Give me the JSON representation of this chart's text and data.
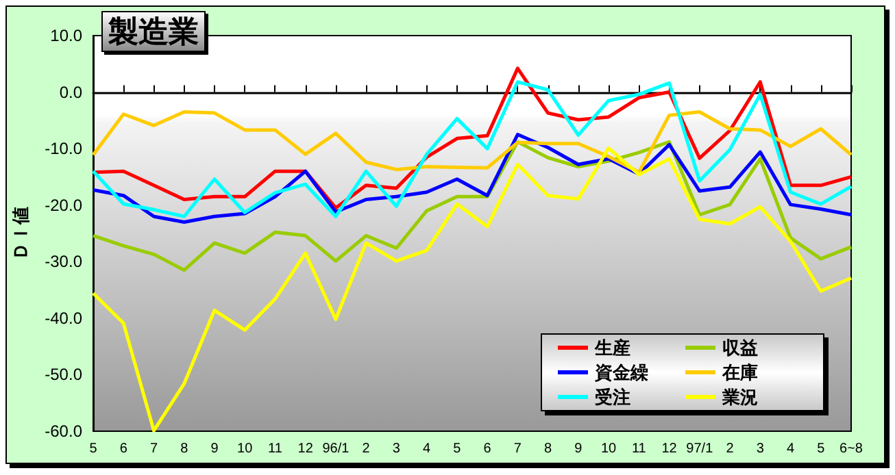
{
  "chart_data": {
    "type": "line",
    "title": "製造業",
    "ylabel": "ＤＩ値",
    "categories": [
      "5",
      "6",
      "7",
      "8",
      "9",
      "10",
      "11",
      "12",
      "96/1",
      "2",
      "3",
      "4",
      "5",
      "6",
      "7",
      "8",
      "9",
      "10",
      "11",
      "12",
      "97/1",
      "2",
      "3",
      "4",
      "5",
      "6~8"
    ],
    "series": [
      {
        "name": "生産",
        "color": "#ff0000",
        "values": [
          -14.2,
          -14,
          -16.5,
          -19,
          -18.5,
          -18.5,
          -14,
          -14,
          -20.5,
          -16.5,
          -17,
          -11.5,
          -8.2,
          -7.7,
          4.2,
          -3.7,
          -4.9,
          -4.4,
          -1,
          0,
          -11.7,
          -6.8,
          1.8,
          -16.5,
          -16.5,
          -15
        ]
      },
      {
        "name": "収益",
        "color": "#99cc00",
        "values": [
          -25.4,
          -27.2,
          -28.7,
          -31.5,
          -26.7,
          -28.5,
          -24.8,
          -25.4,
          -29.9,
          -25.4,
          -27.6,
          -21,
          -18.5,
          -18.5,
          -8.8,
          -11.6,
          -13.2,
          -12.2,
          -10.7,
          -8.8,
          -21.7,
          -19.9,
          -11.8,
          -25.8,
          -29.5,
          -27.4
        ]
      },
      {
        "name": "資金繰",
        "color": "#0000ff",
        "values": [
          -17.3,
          -18.3,
          -22,
          -23,
          -22,
          -21.5,
          -18.5,
          -14,
          -21.2,
          -19,
          -18.5,
          -17.7,
          -15.4,
          -18.3,
          -7.5,
          -9.8,
          -12.8,
          -11.8,
          -14.5,
          -9.3,
          -17.5,
          -16.8,
          -10.6,
          -19.9,
          -20.7,
          -21.7
        ]
      },
      {
        "name": "在庫",
        "color": "#ffcc00",
        "values": [
          -11.1,
          -3.9,
          -5.9,
          -3.5,
          -3.7,
          -6.7,
          -6.7,
          -11,
          -7.3,
          -12.4,
          -13.7,
          -13.2,
          -13.3,
          -13.4,
          -8.9,
          -9.1,
          -9.1,
          -11.4,
          -14.2,
          -4.1,
          -3.5,
          -6.5,
          -6.7,
          -9.6,
          -6.5,
          -11.1
        ]
      },
      {
        "name": "受注",
        "color": "#00ffff",
        "values": [
          -14,
          -19.8,
          -20.8,
          -22,
          -15.4,
          -21.3,
          -17.8,
          -16.3,
          -22,
          -14,
          -20.2,
          -11,
          -4.7,
          -10,
          1.8,
          0.4,
          -7.6,
          -1.5,
          -0.4,
          1.6,
          -15.7,
          -10.2,
          -0.4,
          -17.7,
          -19.8,
          -16.7
        ]
      },
      {
        "name": "業況",
        "color": "#ffff00",
        "values": [
          -35.6,
          -40.9,
          -59.9,
          -51.6,
          -38.6,
          -42.1,
          -36.6,
          -28.5,
          -40.2,
          -26.7,
          -29.9,
          -28,
          -19.8,
          -23.8,
          -12.8,
          -18.3,
          -18.9,
          -9.9,
          -14.6,
          -11.8,
          -22.5,
          -23.3,
          -20.3,
          -26.4,
          -35.2,
          -32.9
        ]
      }
    ],
    "ylim": [
      -60,
      10
    ],
    "yticks": [
      {
        "value": -60,
        "label": "-60.0"
      },
      {
        "value": -50,
        "label": "-50.0"
      },
      {
        "value": -40,
        "label": "-40.0"
      },
      {
        "value": -30,
        "label": "-30.0"
      },
      {
        "value": -20,
        "label": "-20.0"
      },
      {
        "value": -10,
        "label": "-10.0"
      },
      {
        "value": 0,
        "label": "0.0"
      },
      {
        "value": 10,
        "label": "10.0"
      }
    ],
    "legend": "bottom right",
    "marker": "none",
    "line_style": "solid"
  }
}
